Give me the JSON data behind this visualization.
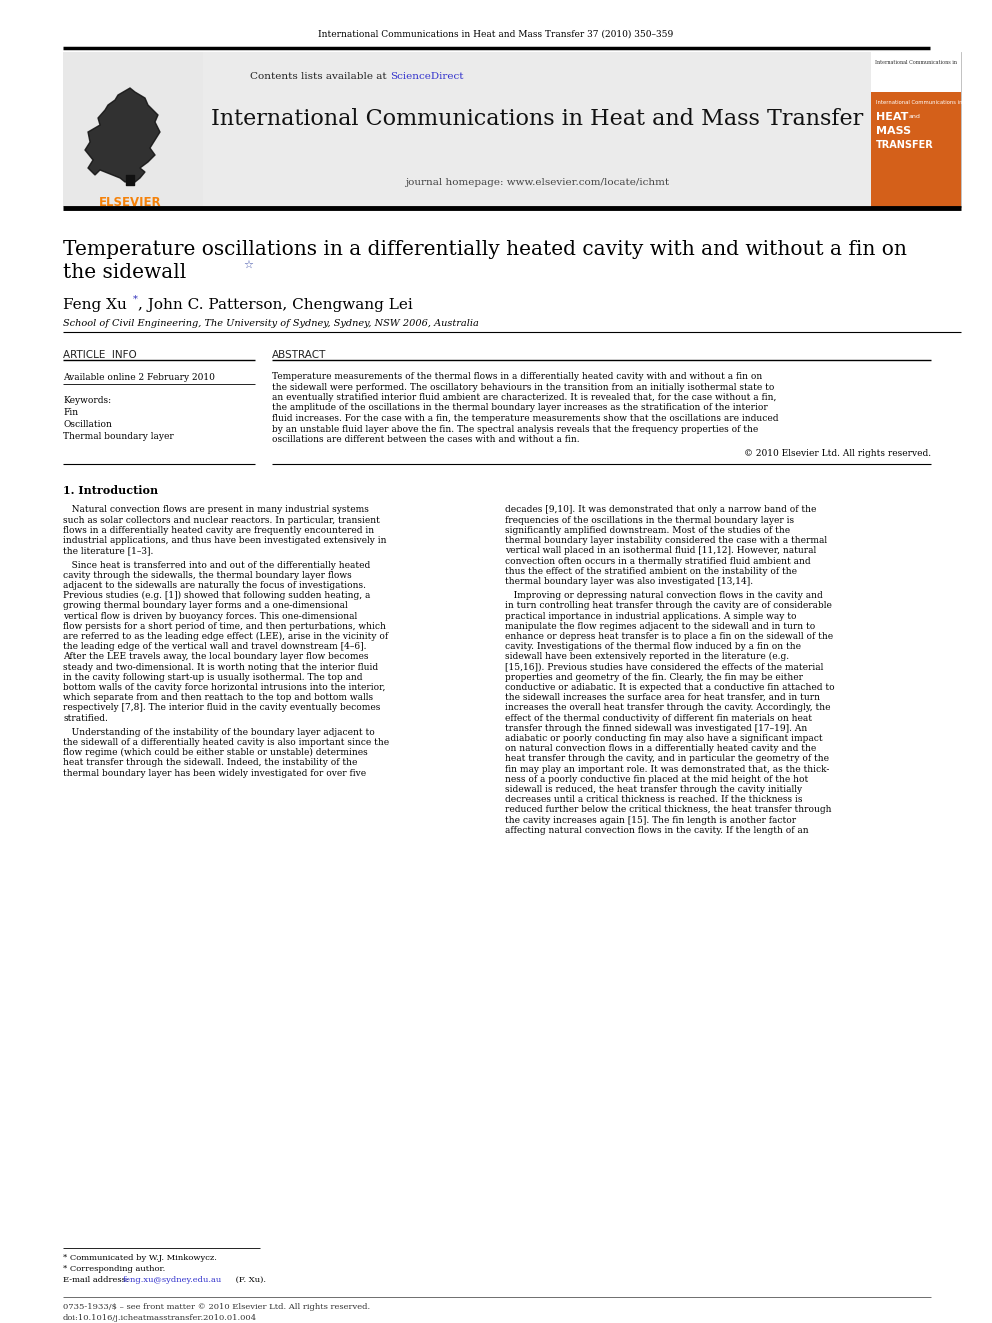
{
  "journal_ref": "International Communications in Heat and Mass Transfer 37 (2010) 350–359",
  "contents_line1": "Contents lists available at ",
  "contents_line2": "ScienceDirect",
  "journal_name": "International Communications in Heat and Mass Transfer",
  "journal_homepage": "journal homepage: www.elsevier.com/locate/ichmt",
  "title_line1": "Temperature oscillations in a differentially heated cavity with and without a fin on",
  "title_line2": "the sidewall",
  "author_text1": "Feng Xu",
  "author_star": "*",
  "author_text2": ", John C. Patterson, Chengwang Lei",
  "affiliation": "School of Civil Engineering, The University of Sydney, Sydney, NSW 2006, Australia",
  "article_info_header": "ARTICLE  INFO",
  "abstract_header": "ABSTRACT",
  "available_online": "Available online 2 February 2010",
  "keywords_label": "Keywords:",
  "keywords": [
    "Fin",
    "Oscillation",
    "Thermal boundary layer"
  ],
  "copyright": "© 2010 Elsevier Ltd. All rights reserved.",
  "section1_title": "1. Introduction",
  "cover_top_text": "International Communications in",
  "cover_title1": "HEAT",
  "cover_and": "and",
  "cover_title2": "MASS",
  "cover_title3": "TRANSFER",
  "footnote1": "* Communicated by W.J. Minkowycz.",
  "footnote2": "* Corresponding author.",
  "footnote3_pre": "E-mail address: ",
  "footnote3_email": "feng.xu@sydney.edu.au",
  "footnote3_post": " (F. Xu).",
  "footer1": "0735-1933/$ – see front matter © 2010 Elsevier Ltd. All rights reserved.",
  "footer2": "doi:10.1016/j.icheatmasstransfer.2010.01.004",
  "bg_color": "#ffffff",
  "banner_bg": "#e8e8e8",
  "link_color": "#3333cc",
  "orange_color": "#d4601a",
  "elsevier_orange": "#f5820a",
  "abstract_lines": [
    "Temperature measurements of the thermal flows in a differentially heated cavity with and without a fin on",
    "the sidewall were performed. The oscillatory behaviours in the transition from an initially isothermal state to",
    "an eventually stratified interior fluid ambient are characterized. It is revealed that, for the case without a fin,",
    "the amplitude of the oscillations in the thermal boundary layer increases as the stratification of the interior",
    "fluid increases. For the case with a fin, the temperature measurements show that the oscillations are induced",
    "by an unstable fluid layer above the fin. The spectral analysis reveals that the frequency properties of the",
    "oscillations are different between the cases with and without a fin."
  ],
  "left_col_lines": [
    "   Natural convection flows are present in many industrial systems",
    "such as solar collectors and nuclear reactors. In particular, transient",
    "flows in a differentially heated cavity are frequently encountered in",
    "industrial applications, and thus have been investigated extensively in",
    "the literature [1–3].",
    "",
    "   Since heat is transferred into and out of the differentially heated",
    "cavity through the sidewalls, the thermal boundary layer flows",
    "adjacent to the sidewalls are naturally the focus of investigations.",
    "Previous studies (e.g. [1]) showed that following sudden heating, a",
    "growing thermal boundary layer forms and a one-dimensional",
    "vertical flow is driven by buoyancy forces. This one-dimensional",
    "flow persists for a short period of time, and then perturbations, which",
    "are referred to as the leading edge effect (LEE), arise in the vicinity of",
    "the leading edge of the vertical wall and travel downstream [4–6].",
    "After the LEE travels away, the local boundary layer flow becomes",
    "steady and two-dimensional. It is worth noting that the interior fluid",
    "in the cavity following start-up is usually isothermal. The top and",
    "bottom walls of the cavity force horizontal intrusions into the interior,",
    "which separate from and then reattach to the top and bottom walls",
    "respectively [7,8]. The interior fluid in the cavity eventually becomes",
    "stratified.",
    "",
    "   Understanding of the instability of the boundary layer adjacent to",
    "the sidewall of a differentially heated cavity is also important since the",
    "flow regime (which could be either stable or unstable) determines",
    "heat transfer through the sidewall. Indeed, the instability of the",
    "thermal boundary layer has been widely investigated for over five"
  ],
  "right_col_lines": [
    "decades [9,10]. It was demonstrated that only a narrow band of the",
    "frequencies of the oscillations in the thermal boundary layer is",
    "significantly amplified downstream. Most of the studies of the",
    "thermal boundary layer instability considered the case with a thermal",
    "vertical wall placed in an isothermal fluid [11,12]. However, natural",
    "convection often occurs in a thermally stratified fluid ambient and",
    "thus the effect of the stratified ambient on the instability of the",
    "thermal boundary layer was also investigated [13,14].",
    "",
    "   Improving or depressing natural convection flows in the cavity and",
    "in turn controlling heat transfer through the cavity are of considerable",
    "practical importance in industrial applications. A simple way to",
    "manipulate the flow regimes adjacent to the sidewall and in turn to",
    "enhance or depress heat transfer is to place a fin on the sidewall of the",
    "cavity. Investigations of the thermal flow induced by a fin on the",
    "sidewall have been extensively reported in the literature (e.g.",
    "[15,16]). Previous studies have considered the effects of the material",
    "properties and geometry of the fin. Clearly, the fin may be either",
    "conductive or adiabatic. It is expected that a conductive fin attached to",
    "the sidewall increases the surface area for heat transfer, and in turn",
    "increases the overall heat transfer through the cavity. Accordingly, the",
    "effect of the thermal conductivity of different fin materials on heat",
    "transfer through the finned sidewall was investigated [17–19]. An",
    "adiabatic or poorly conducting fin may also have a significant impact",
    "on natural convection flows in a differentially heated cavity and the",
    "heat transfer through the cavity, and in particular the geometry of the",
    "fin may play an important role. It was demonstrated that, as the thick-",
    "ness of a poorly conductive fin placed at the mid height of the hot",
    "sidewall is reduced, the heat transfer through the cavity initially",
    "decreases until a critical thickness is reached. If the thickness is",
    "reduced further below the critical thickness, the heat transfer through",
    "the cavity increases again [15]. The fin length is another factor",
    "affecting natural convection flows in the cavity. If the length of an"
  ]
}
